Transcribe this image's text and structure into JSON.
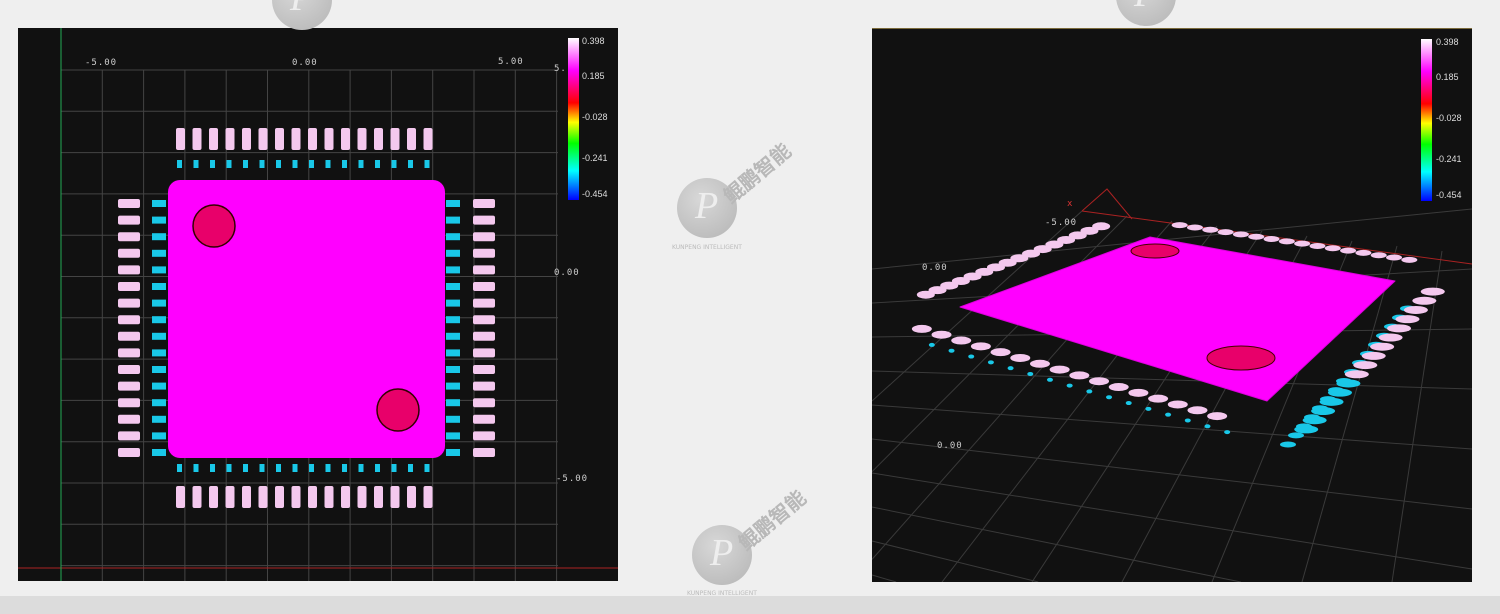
{
  "colorbar": {
    "labels": [
      "0.398",
      "0.185",
      "-0.028",
      "-0.241",
      "-0.454"
    ],
    "colors": [
      "#ffffff",
      "#ff00ff",
      "#ff0000",
      "#ffff00",
      "#00ff00",
      "#00ffff",
      "#0000ff"
    ]
  },
  "view_2d": {
    "x_ticks": [
      "-5.00",
      "0.00",
      "5.00"
    ],
    "y_ticks": [
      "5.",
      "0.00",
      "-5.00"
    ]
  },
  "view_3d": {
    "axis_label": "x",
    "ticks": [
      "-5.00",
      "0.00",
      "0.00"
    ]
  },
  "watermark": {
    "name": "鲲鹏智能",
    "subtitle": "KUNPENG INTELLIGENT"
  },
  "colors": {
    "body": "#ff00ff",
    "fiducial": "#e8006a",
    "lead": "#f4c8ee",
    "solder": "#19c8e8",
    "background": "#111111"
  }
}
